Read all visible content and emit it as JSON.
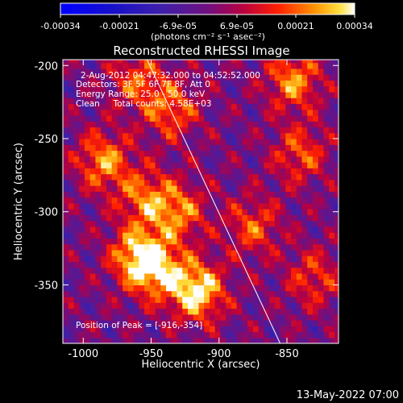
{
  "colorbar": {
    "ticks": [
      "-0.00034",
      "-0.00021",
      "-6.9e-05",
      "6.9e-05",
      "0.00021",
      "0.00034"
    ],
    "units_label": "(photons cm⁻² s⁻¹ asec⁻²)"
  },
  "chart_data": {
    "type": "heatmap",
    "title": "Reconstructed RHESSI Image",
    "xlabel": "Heliocentric X (arcsec)",
    "ylabel": "Heliocentric Y (arcsec)",
    "xlim": [
      -1015,
      -812
    ],
    "ylim": [
      -390,
      -196
    ],
    "x_ticks": [
      "-1000",
      "-950",
      "-900",
      "-850"
    ],
    "y_ticks": [
      "-200",
      "-250",
      "-300",
      "-350"
    ],
    "x_tick_values": [
      -1000,
      -950,
      -900,
      -850
    ],
    "y_tick_values": [
      -200,
      -250,
      -300,
      -350
    ],
    "zlim": [
      -0.00034,
      0.00034
    ],
    "annotations": [
      "2-Aug-2012 04:47:32.000 to 04:52:52.000",
      "Detectors: 3F 5F 6F 7F 8F, Att 0",
      "Energy Range: 25.0 - 50.0 keV",
      "Clean     Total counts: 4.58E+03"
    ],
    "peak_label": "Position of Peak = [-916,-354]",
    "peak_position": [
      -916,
      -354
    ],
    "limb_line": [
      [
        -953,
        -196
      ],
      [
        -855,
        -390
      ]
    ],
    "sources": [
      {
        "x": -916,
        "y": -354,
        "amplitude": 0.00034
      },
      {
        "x": -945,
        "y": -340,
        "amplitude": 0.00024
      },
      {
        "x": -960,
        "y": -330,
        "amplitude": 0.00028
      },
      {
        "x": -930,
        "y": -300,
        "amplitude": 0.00022
      },
      {
        "x": -955,
        "y": -290,
        "amplitude": 0.0002
      },
      {
        "x": -985,
        "y": -265,
        "amplitude": 0.00024
      },
      {
        "x": -935,
        "y": -230,
        "amplitude": 0.0002
      },
      {
        "x": -960,
        "y": -210,
        "amplitude": 0.00018
      },
      {
        "x": -845,
        "y": -210,
        "amplitude": 0.00024
      },
      {
        "x": -840,
        "y": -260,
        "amplitude": 0.00018
      },
      {
        "x": -875,
        "y": -310,
        "amplitude": 0.00018
      },
      {
        "x": -830,
        "y": -345,
        "amplitude": 0.00016
      }
    ]
  },
  "footer": {
    "timestamp": "13-May-2022 07:00"
  }
}
